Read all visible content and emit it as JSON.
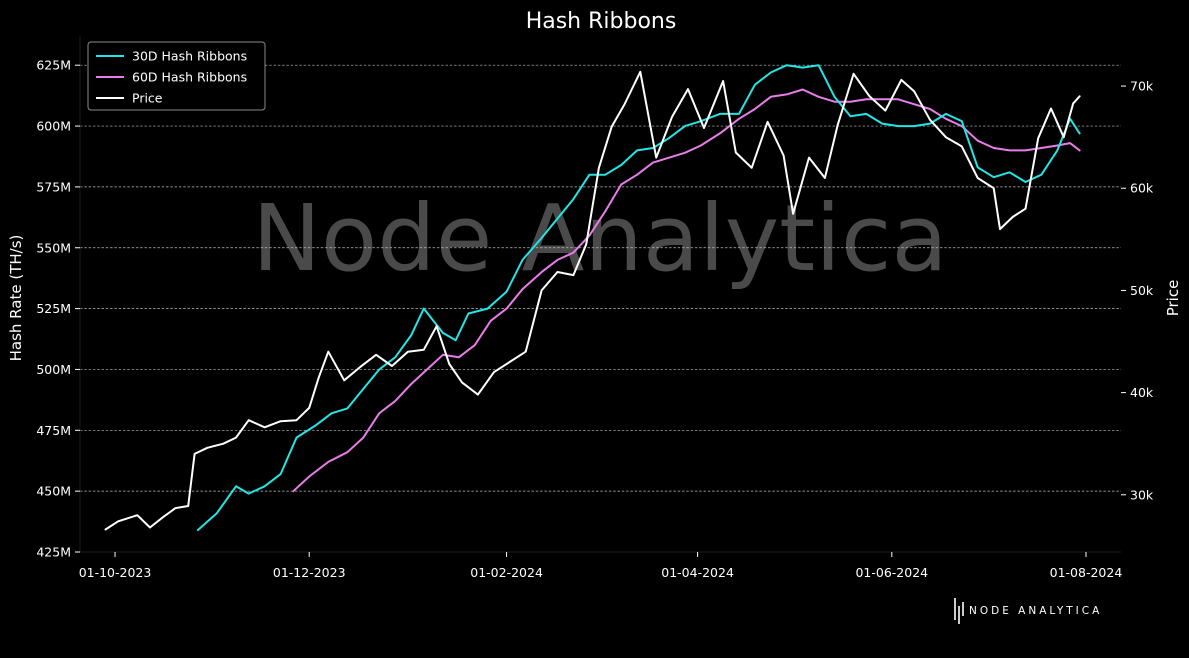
{
  "chart_data": {
    "type": "line",
    "title": "Hash Ribbons",
    "ylabel_left": "Hash Rate (TH/s)",
    "ylabel_right": "Price",
    "watermark": "Node Analytica",
    "logo_text": "NODE ANALYTICA",
    "x_ticks": [
      {
        "date": "2023-10-01",
        "label": "01-10-2023"
      },
      {
        "date": "2023-12-01",
        "label": "01-12-2023"
      },
      {
        "date": "2024-02-01",
        "label": "01-02-2024"
      },
      {
        "date": "2024-04-01",
        "label": "01-04-2024"
      },
      {
        "date": "2024-06-01",
        "label": "01-06-2024"
      },
      {
        "date": "2024-08-01",
        "label": "01-08-2024"
      }
    ],
    "xlim": [
      "2023-09-20",
      "2024-08-12"
    ],
    "y_left_ticks": [
      {
        "value": 425,
        "label": "425M"
      },
      {
        "value": 450,
        "label": "450M"
      },
      {
        "value": 475,
        "label": "475M"
      },
      {
        "value": 500,
        "label": "500M"
      },
      {
        "value": 525,
        "label": "525M"
      },
      {
        "value": 550,
        "label": "550M"
      },
      {
        "value": 575,
        "label": "575M"
      },
      {
        "value": 600,
        "label": "600M"
      },
      {
        "value": 625,
        "label": "625M"
      }
    ],
    "y_left_lim": [
      425,
      637
    ],
    "y_right_ticks": [
      {
        "value": 30000,
        "label": "30k"
      },
      {
        "value": 40000,
        "label": "40k"
      },
      {
        "value": 50000,
        "label": "50k"
      },
      {
        "value": 60000,
        "label": "60k"
      },
      {
        "value": 70000,
        "label": "70k"
      }
    ],
    "y_right_lim": [
      24400,
      74900
    ],
    "grid": "horizontal-dashed",
    "legend_position": "top-left",
    "series": [
      {
        "name": "30D Hash Ribbons",
        "axis": "left",
        "color": "#22e5e5",
        "points": [
          [
            "2023-10-27",
            434
          ],
          [
            "2023-11-02",
            441
          ],
          [
            "2023-11-08",
            452
          ],
          [
            "2023-11-12",
            449
          ],
          [
            "2023-11-17",
            452
          ],
          [
            "2023-11-22",
            457
          ],
          [
            "2023-11-27",
            472
          ],
          [
            "2023-12-03",
            477
          ],
          [
            "2023-12-08",
            482
          ],
          [
            "2023-12-13",
            484
          ],
          [
            "2023-12-18",
            492
          ],
          [
            "2023-12-23",
            500
          ],
          [
            "2023-12-28",
            505
          ],
          [
            "2024-01-02",
            514
          ],
          [
            "2024-01-06",
            525
          ],
          [
            "2024-01-12",
            515
          ],
          [
            "2024-01-16",
            512
          ],
          [
            "2024-01-20",
            523
          ],
          [
            "2024-01-26",
            525
          ],
          [
            "2024-02-01",
            532
          ],
          [
            "2024-02-06",
            545
          ],
          [
            "2024-02-12",
            554
          ],
          [
            "2024-02-17",
            562
          ],
          [
            "2024-02-22",
            570
          ],
          [
            "2024-02-27",
            580
          ],
          [
            "2024-03-03",
            580
          ],
          [
            "2024-03-08",
            584
          ],
          [
            "2024-03-13",
            590
          ],
          [
            "2024-03-18",
            591
          ],
          [
            "2024-03-23",
            595
          ],
          [
            "2024-03-28",
            600
          ],
          [
            "2024-04-02",
            602
          ],
          [
            "2024-04-08",
            605
          ],
          [
            "2024-04-14",
            605
          ],
          [
            "2024-04-19",
            617
          ],
          [
            "2024-04-24",
            622
          ],
          [
            "2024-04-29",
            625
          ],
          [
            "2024-05-04",
            624
          ],
          [
            "2024-05-09",
            625
          ],
          [
            "2024-05-14",
            612
          ],
          [
            "2024-05-19",
            604
          ],
          [
            "2024-05-24",
            605
          ],
          [
            "2024-05-29",
            601
          ],
          [
            "2024-06-03",
            600
          ],
          [
            "2024-06-08",
            600
          ],
          [
            "2024-06-13",
            601
          ],
          [
            "2024-06-18",
            605
          ],
          [
            "2024-06-23",
            602
          ],
          [
            "2024-06-28",
            583
          ],
          [
            "2024-07-03",
            579
          ],
          [
            "2024-07-08",
            581
          ],
          [
            "2024-07-13",
            577
          ],
          [
            "2024-07-18",
            580
          ],
          [
            "2024-07-23",
            590
          ],
          [
            "2024-07-27",
            603
          ],
          [
            "2024-07-30",
            597
          ]
        ]
      },
      {
        "name": "60D Hash Ribbons",
        "axis": "left",
        "color": "#e87de8",
        "points": [
          [
            "2023-11-26",
            450
          ],
          [
            "2023-12-01",
            456
          ],
          [
            "2023-12-07",
            462
          ],
          [
            "2023-12-13",
            466
          ],
          [
            "2023-12-18",
            472
          ],
          [
            "2023-12-23",
            482
          ],
          [
            "2023-12-28",
            487
          ],
          [
            "2024-01-02",
            494
          ],
          [
            "2024-01-07",
            500
          ],
          [
            "2024-01-12",
            506
          ],
          [
            "2024-01-17",
            505
          ],
          [
            "2024-01-22",
            510
          ],
          [
            "2024-01-27",
            520
          ],
          [
            "2024-02-01",
            525
          ],
          [
            "2024-02-06",
            533
          ],
          [
            "2024-02-12",
            540
          ],
          [
            "2024-02-17",
            545
          ],
          [
            "2024-02-22",
            548
          ],
          [
            "2024-02-27",
            555
          ],
          [
            "2024-03-03",
            565
          ],
          [
            "2024-03-08",
            576
          ],
          [
            "2024-03-13",
            580
          ],
          [
            "2024-03-18",
            585
          ],
          [
            "2024-03-23",
            587
          ],
          [
            "2024-03-28",
            589
          ],
          [
            "2024-04-02",
            592
          ],
          [
            "2024-04-08",
            597
          ],
          [
            "2024-04-14",
            603
          ],
          [
            "2024-04-19",
            607
          ],
          [
            "2024-04-24",
            612
          ],
          [
            "2024-04-29",
            613
          ],
          [
            "2024-05-04",
            615
          ],
          [
            "2024-05-09",
            612
          ],
          [
            "2024-05-14",
            610
          ],
          [
            "2024-05-19",
            610
          ],
          [
            "2024-05-24",
            611
          ],
          [
            "2024-05-29",
            611
          ],
          [
            "2024-06-03",
            611
          ],
          [
            "2024-06-08",
            609
          ],
          [
            "2024-06-13",
            607
          ],
          [
            "2024-06-18",
            603
          ],
          [
            "2024-06-23",
            600
          ],
          [
            "2024-06-28",
            594
          ],
          [
            "2024-07-03",
            591
          ],
          [
            "2024-07-08",
            590
          ],
          [
            "2024-07-13",
            590
          ],
          [
            "2024-07-18",
            591
          ],
          [
            "2024-07-23",
            592
          ],
          [
            "2024-07-27",
            593
          ],
          [
            "2024-07-30",
            590
          ]
        ]
      },
      {
        "name": "Price",
        "axis": "right",
        "color": "#ffffff",
        "points": [
          [
            "2023-09-28",
            26600
          ],
          [
            "2023-10-02",
            27400
          ],
          [
            "2023-10-08",
            28000
          ],
          [
            "2023-10-12",
            26800
          ],
          [
            "2023-10-16",
            27800
          ],
          [
            "2023-10-20",
            28700
          ],
          [
            "2023-10-24",
            28900
          ],
          [
            "2023-10-26",
            34000
          ],
          [
            "2023-10-30",
            34600
          ],
          [
            "2023-11-04",
            35000
          ],
          [
            "2023-11-08",
            35600
          ],
          [
            "2023-11-12",
            37300
          ],
          [
            "2023-11-17",
            36600
          ],
          [
            "2023-11-22",
            37200
          ],
          [
            "2023-11-27",
            37300
          ],
          [
            "2023-12-01",
            38500
          ],
          [
            "2023-12-04",
            41500
          ],
          [
            "2023-12-07",
            44000
          ],
          [
            "2023-12-12",
            41200
          ],
          [
            "2023-12-17",
            42500
          ],
          [
            "2023-12-22",
            43700
          ],
          [
            "2023-12-27",
            42600
          ],
          [
            "2024-01-01",
            44000
          ],
          [
            "2024-01-06",
            44200
          ],
          [
            "2024-01-10",
            46500
          ],
          [
            "2024-01-14",
            42800
          ],
          [
            "2024-01-18",
            41000
          ],
          [
            "2024-01-23",
            39800
          ],
          [
            "2024-01-28",
            42000
          ],
          [
            "2024-02-02",
            43000
          ],
          [
            "2024-02-07",
            44000
          ],
          [
            "2024-02-12",
            50000
          ],
          [
            "2024-02-17",
            51800
          ],
          [
            "2024-02-22",
            51500
          ],
          [
            "2024-02-26",
            54500
          ],
          [
            "2024-03-01",
            62000
          ],
          [
            "2024-03-05",
            66000
          ],
          [
            "2024-03-09",
            68200
          ],
          [
            "2024-03-14",
            71400
          ],
          [
            "2024-03-19",
            63000
          ],
          [
            "2024-03-24",
            67000
          ],
          [
            "2024-03-29",
            69700
          ],
          [
            "2024-04-03",
            65900
          ],
          [
            "2024-04-09",
            70500
          ],
          [
            "2024-04-13",
            63500
          ],
          [
            "2024-04-18",
            62000
          ],
          [
            "2024-04-23",
            66500
          ],
          [
            "2024-04-28",
            63200
          ],
          [
            "2024-05-01",
            57500
          ],
          [
            "2024-05-06",
            63000
          ],
          [
            "2024-05-11",
            61000
          ],
          [
            "2024-05-15",
            66200
          ],
          [
            "2024-05-20",
            71200
          ],
          [
            "2024-05-25",
            69000
          ],
          [
            "2024-05-30",
            67600
          ],
          [
            "2024-06-04",
            70600
          ],
          [
            "2024-06-08",
            69500
          ],
          [
            "2024-06-13",
            66700
          ],
          [
            "2024-06-18",
            65000
          ],
          [
            "2024-06-23",
            64100
          ],
          [
            "2024-06-28",
            61000
          ],
          [
            "2024-07-03",
            60000
          ],
          [
            "2024-07-05",
            56000
          ],
          [
            "2024-07-09",
            57200
          ],
          [
            "2024-07-13",
            58000
          ],
          [
            "2024-07-17",
            64900
          ],
          [
            "2024-07-21",
            67800
          ],
          [
            "2024-07-25",
            65000
          ],
          [
            "2024-07-28",
            68300
          ],
          [
            "2024-07-30",
            69000
          ]
        ]
      }
    ]
  }
}
